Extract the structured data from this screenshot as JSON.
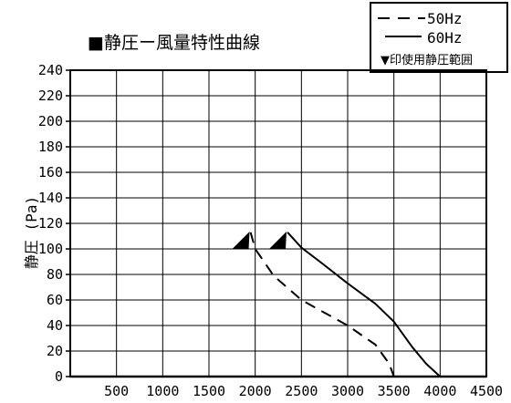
{
  "chart_data": {
    "type": "line",
    "title": "■静圧ー風量特性曲線",
    "ylabel": "静圧 (Pa)",
    "xlabel": "",
    "xlim": [
      0,
      4500
    ],
    "ylim": [
      0,
      240
    ],
    "x_ticks": [
      "500",
      "1000",
      "1500",
      "2000",
      "2500",
      "3000",
      "3500",
      "4000",
      "4500"
    ],
    "y_ticks": [
      "0",
      "20",
      "40",
      "60",
      "80",
      "100",
      "120",
      "140",
      "160",
      "180",
      "200",
      "220",
      "240"
    ],
    "grid": true,
    "legend_position": "top-right",
    "legend_note": "▼印使用静圧範囲",
    "series": [
      {
        "name": "50Hz",
        "style": "dashed",
        "x": [
          1950,
          2000,
          2200,
          2500,
          3000,
          3300,
          3450,
          3500
        ],
        "y": [
          113,
          100,
          79,
          60,
          40,
          25,
          10,
          0
        ]
      },
      {
        "name": "60Hz",
        "style": "solid",
        "x": [
          2350,
          2500,
          2700,
          3000,
          3300,
          3500,
          3700,
          3850,
          4000
        ],
        "y": [
          113,
          101,
          90,
          73,
          57,
          43,
          23,
          10,
          0
        ]
      }
    ],
    "markers": [
      {
        "x": 1850,
        "y": 105
      },
      {
        "x": 2250,
        "y": 105
      }
    ]
  }
}
